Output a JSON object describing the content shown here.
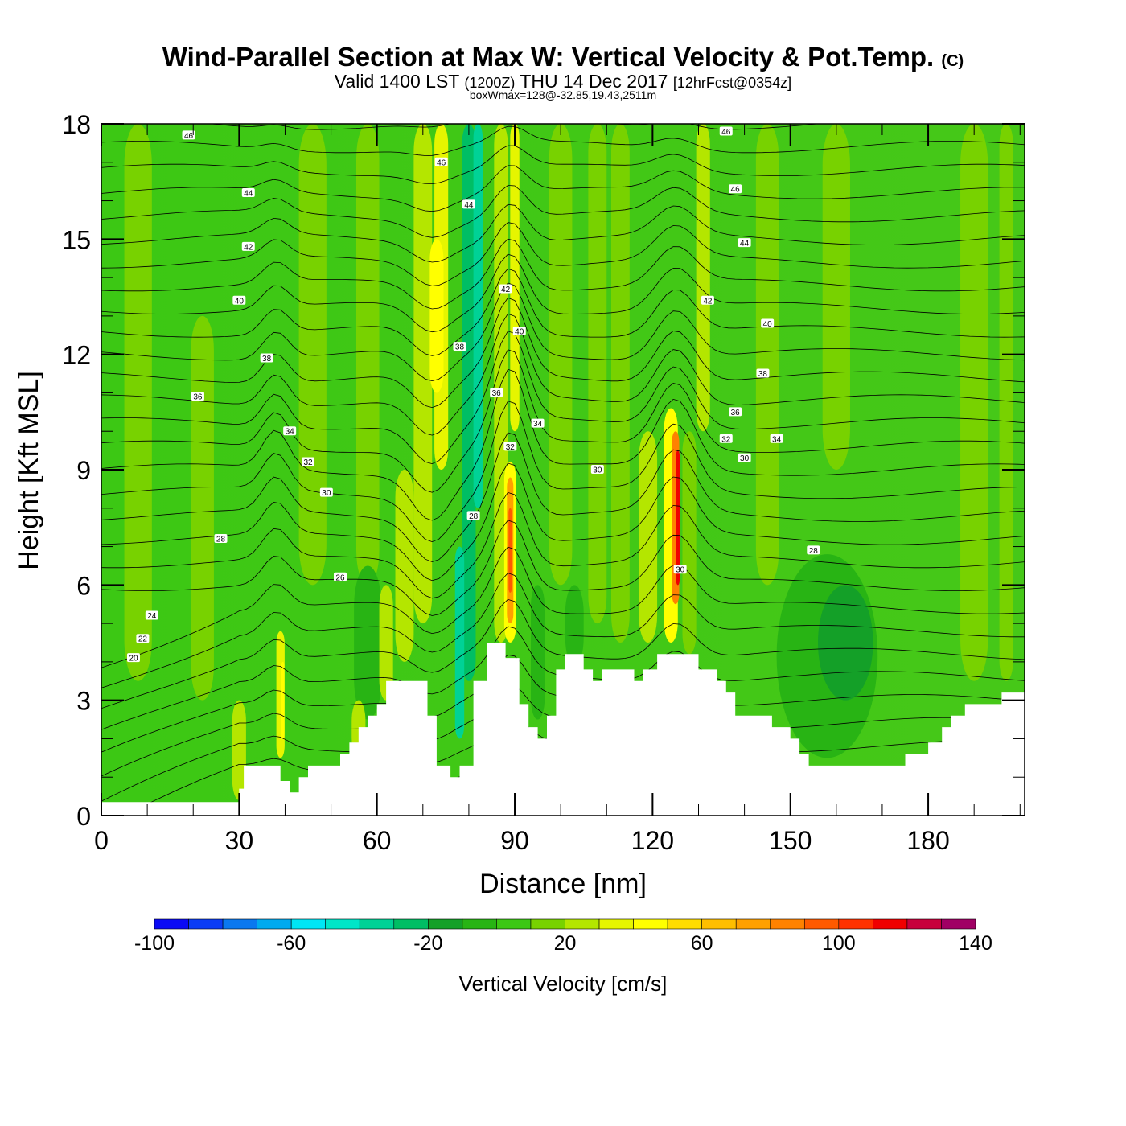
{
  "title": {
    "main": "Wind-Parallel Section at Max W: Vertical Velocity & Pot.Temp.",
    "main_mark": "(C)",
    "line2_a": "Valid 1400 LST",
    "line2_b": "(1200Z)",
    "line2_c": "THU 14 Dec 2017",
    "line2_d": "[12hrFcst@0354z]",
    "line3": "boxWmax=128@-32.85,19.43,2511m"
  },
  "chart_data": {
    "type": "heatmap",
    "xlabel": "Distance [nm]",
    "ylabel": "Height [Kft MSL]",
    "xlim": [
      0,
      201
    ],
    "ylim": [
      0,
      18
    ],
    "x_ticks": [
      "0",
      "30",
      "60",
      "90",
      "120",
      "150",
      "180"
    ],
    "y_ticks": [
      "0",
      "3",
      "6",
      "9",
      "12",
      "15",
      "18"
    ],
    "x_tick_values": [
      0,
      30,
      60,
      90,
      120,
      150,
      180
    ],
    "y_tick_values": [
      0,
      3,
      6,
      9,
      12,
      15,
      18
    ],
    "colorbar": {
      "title": "Vertical Velocity [cm/s]",
      "min": -100,
      "max": 140,
      "step": 10,
      "labels": [
        "-100",
        "-60",
        "-20",
        "20",
        "60",
        "100",
        "140"
      ],
      "colors": [
        "#0a0af5",
        "#0a3cf5",
        "#0a78f0",
        "#00aaf0",
        "#00e6f5",
        "#00e6c8",
        "#00d296",
        "#00be64",
        "#14a028",
        "#28b414",
        "#3cc814",
        "#78d200",
        "#b4e600",
        "#e6f500",
        "#ffff00",
        "#ffdc00",
        "#ffbe00",
        "#ffa000",
        "#ff8200",
        "#ff5a00",
        "#ff3200",
        "#f00000",
        "#c8003c",
        "#a00064"
      ]
    },
    "terrain_kft": [
      [
        0,
        0.35
      ],
      [
        30,
        0.35
      ],
      [
        30,
        0.7
      ],
      [
        31,
        0.7
      ],
      [
        31,
        1.3
      ],
      [
        39,
        1.3
      ],
      [
        39,
        0.9
      ],
      [
        41,
        0.9
      ],
      [
        41,
        0.6
      ],
      [
        43,
        0.6
      ],
      [
        43,
        1.0
      ],
      [
        45,
        1.0
      ],
      [
        45,
        1.3
      ],
      [
        52,
        1.3
      ],
      [
        52,
        1.6
      ],
      [
        54,
        1.6
      ],
      [
        54,
        1.9
      ],
      [
        56,
        1.9
      ],
      [
        56,
        2.3
      ],
      [
        58,
        2.3
      ],
      [
        58,
        2.6
      ],
      [
        60,
        2.6
      ],
      [
        60,
        2.9
      ],
      [
        62,
        2.9
      ],
      [
        62,
        3.5
      ],
      [
        71,
        3.5
      ],
      [
        71,
        2.6
      ],
      [
        73,
        2.6
      ],
      [
        73,
        1.3
      ],
      [
        76,
        1.3
      ],
      [
        76,
        1.0
      ],
      [
        78,
        1.0
      ],
      [
        78,
        1.3
      ],
      [
        81,
        1.3
      ],
      [
        81,
        3.5
      ],
      [
        84,
        3.5
      ],
      [
        84,
        4.5
      ],
      [
        88,
        4.5
      ],
      [
        88,
        4.1
      ],
      [
        91,
        4.1
      ],
      [
        91,
        2.9
      ],
      [
        93,
        2.9
      ],
      [
        93,
        2.3
      ],
      [
        95,
        2.3
      ],
      [
        95,
        2.0
      ],
      [
        97,
        2.0
      ],
      [
        97,
        2.6
      ],
      [
        99,
        2.6
      ],
      [
        99,
        3.8
      ],
      [
        101,
        3.8
      ],
      [
        101,
        4.2
      ],
      [
        105,
        4.2
      ],
      [
        105,
        3.8
      ],
      [
        107,
        3.8
      ],
      [
        107,
        3.5
      ],
      [
        109,
        3.5
      ],
      [
        109,
        3.8
      ],
      [
        116,
        3.8
      ],
      [
        116,
        3.5
      ],
      [
        118,
        3.5
      ],
      [
        118,
        3.8
      ],
      [
        121,
        3.8
      ],
      [
        121,
        4.2
      ],
      [
        130,
        4.2
      ],
      [
        130,
        3.8
      ],
      [
        134,
        3.8
      ],
      [
        134,
        3.5
      ],
      [
        136,
        3.5
      ],
      [
        136,
        3.2
      ],
      [
        138,
        3.2
      ],
      [
        138,
        2.6
      ],
      [
        146,
        2.6
      ],
      [
        146,
        2.3
      ],
      [
        150,
        2.3
      ],
      [
        150,
        2.0
      ],
      [
        152,
        2.0
      ],
      [
        152,
        1.6
      ],
      [
        154,
        1.6
      ],
      [
        154,
        1.3
      ],
      [
        175,
        1.3
      ],
      [
        175,
        1.6
      ],
      [
        180,
        1.6
      ],
      [
        180,
        1.9
      ],
      [
        183,
        1.9
      ],
      [
        183,
        2.3
      ],
      [
        185,
        2.3
      ],
      [
        185,
        2.6
      ],
      [
        188,
        2.6
      ],
      [
        188,
        2.9
      ],
      [
        196,
        2.9
      ],
      [
        196,
        3.2
      ],
      [
        201,
        3.2
      ]
    ],
    "theta_labels": [
      {
        "text": "46",
        "x": 19,
        "y": 17.7
      },
      {
        "text": "44",
        "x": 32,
        "y": 16.2
      },
      {
        "text": "42",
        "x": 32,
        "y": 14.8
      },
      {
        "text": "40",
        "x": 30,
        "y": 13.4
      },
      {
        "text": "38",
        "x": 36,
        "y": 11.9
      },
      {
        "text": "36",
        "x": 21,
        "y": 10.9
      },
      {
        "text": "34",
        "x": 41,
        "y": 10.0
      },
      {
        "text": "32",
        "x": 45,
        "y": 9.2
      },
      {
        "text": "30",
        "x": 49,
        "y": 8.4
      },
      {
        "text": "28",
        "x": 26,
        "y": 7.2
      },
      {
        "text": "26",
        "x": 52,
        "y": 6.2
      },
      {
        "text": "24",
        "x": 11,
        "y": 5.2
      },
      {
        "text": "22",
        "x": 9,
        "y": 4.6
      },
      {
        "text": "20",
        "x": 7,
        "y": 4.1
      },
      {
        "text": "46",
        "x": 74,
        "y": 17.0
      },
      {
        "text": "44",
        "x": 80,
        "y": 15.9
      },
      {
        "text": "42",
        "x": 88,
        "y": 13.7
      },
      {
        "text": "40",
        "x": 91,
        "y": 12.6
      },
      {
        "text": "38",
        "x": 78,
        "y": 12.2
      },
      {
        "text": "36",
        "x": 86,
        "y": 11.0
      },
      {
        "text": "34",
        "x": 95,
        "y": 10.2
      },
      {
        "text": "32",
        "x": 89,
        "y": 9.6
      },
      {
        "text": "28",
        "x": 81,
        "y": 7.8
      },
      {
        "text": "30",
        "x": 108,
        "y": 9.0
      },
      {
        "text": "46",
        "x": 136,
        "y": 17.8
      },
      {
        "text": "46",
        "x": 138,
        "y": 16.3
      },
      {
        "text": "44",
        "x": 140,
        "y": 14.9
      },
      {
        "text": "42",
        "x": 132,
        "y": 13.4
      },
      {
        "text": "40",
        "x": 145,
        "y": 12.8
      },
      {
        "text": "38",
        "x": 144,
        "y": 11.5
      },
      {
        "text": "36",
        "x": 138,
        "y": 10.5
      },
      {
        "text": "32",
        "x": 136,
        "y": 9.8
      },
      {
        "text": "34",
        "x": 147,
        "y": 9.8
      },
      {
        "text": "30",
        "x": 140,
        "y": 9.3
      },
      {
        "text": "28",
        "x": 155,
        "y": 6.9
      },
      {
        "text": "30",
        "x": 126,
        "y": 6.4
      }
    ]
  }
}
